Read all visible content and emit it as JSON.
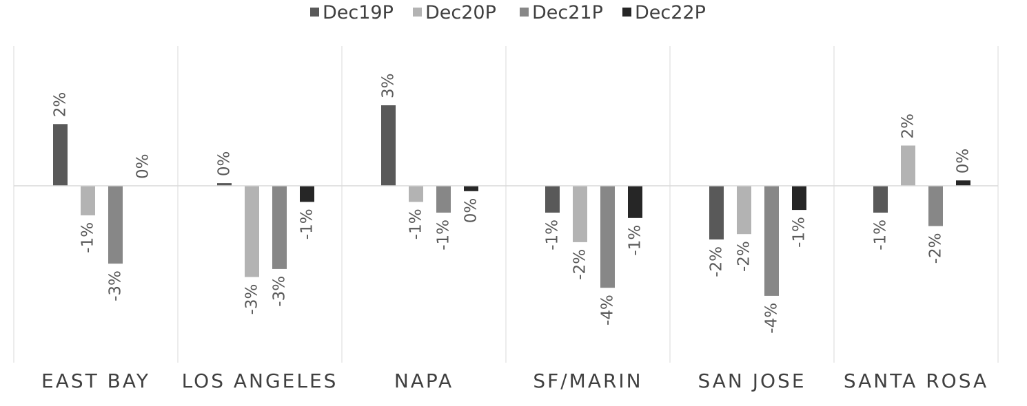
{
  "chart_data": {
    "type": "bar",
    "categories": [
      "EAST BAY",
      "LOS ANGELES",
      "NAPA",
      "SF/MARIN",
      "SAN JOSE",
      "SANTA ROSA"
    ],
    "series": [
      {
        "name": "Dec19P",
        "color": "#595959",
        "values": [
          2.3,
          0.1,
          3.0,
          -1.0,
          -2.0,
          -1.0
        ]
      },
      {
        "name": "Dec20P",
        "color": "#b3b3b3",
        "values": [
          -1.1,
          -3.4,
          -0.6,
          -2.1,
          -1.8,
          1.5
        ]
      },
      {
        "name": "Dec21P",
        "color": "#878787",
        "values": [
          -2.9,
          -3.1,
          -1.0,
          -3.8,
          -4.1,
          -1.5
        ]
      },
      {
        "name": "Dec22P",
        "color": "#262626",
        "values": [
          0.0,
          -0.6,
          -0.2,
          -1.2,
          -0.9,
          0.2
        ]
      }
    ],
    "data_labels": [
      [
        "2%",
        "0%",
        "3%",
        "-1%",
        "-2%",
        "-1%"
      ],
      [
        "-1%",
        "-3%",
        "-1%",
        "-2%",
        "-2%",
        "2%"
      ],
      [
        "-3%",
        "-3%",
        "-1%",
        "-4%",
        "-4%",
        "-2%"
      ],
      [
        "0%",
        "-1%",
        "0%",
        "-1%",
        "-1%",
        "0%"
      ]
    ],
    "ylim": [
      -5.0,
      4.0
    ],
    "legend": "top-center",
    "grid": false,
    "title": "",
    "xlabel": "",
    "ylabel": ""
  }
}
